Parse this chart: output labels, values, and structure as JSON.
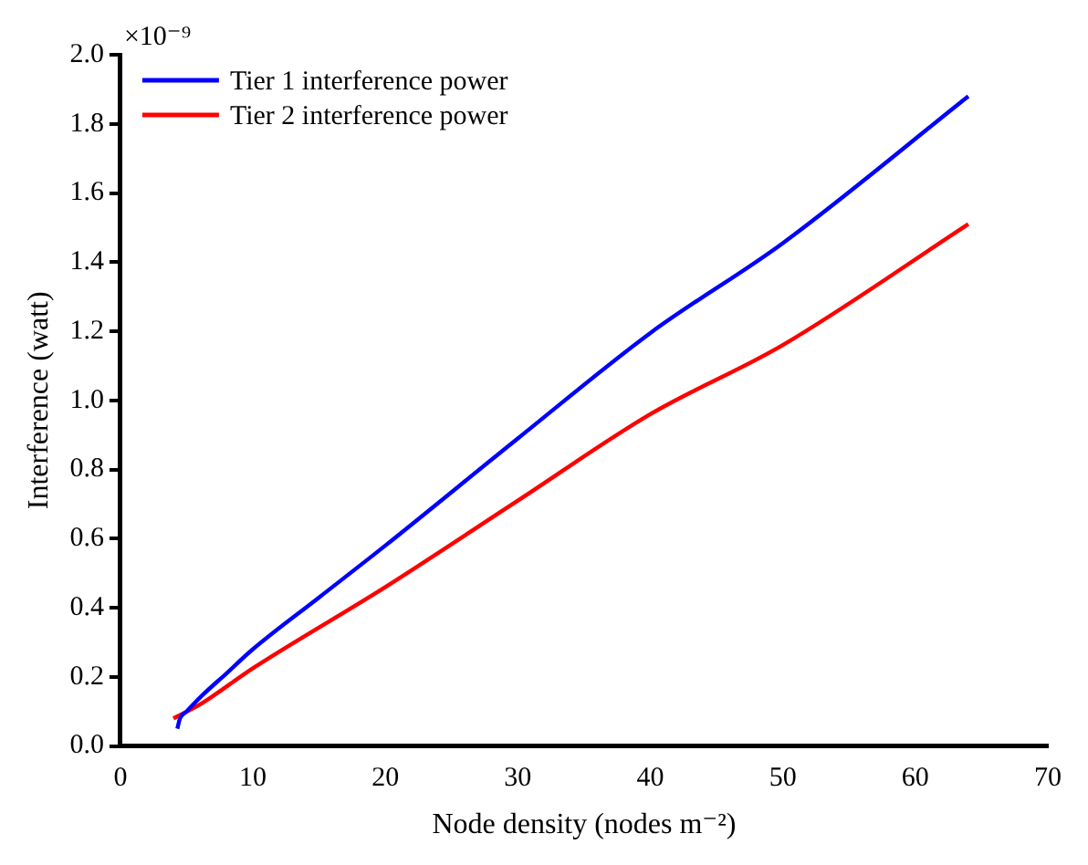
{
  "chart_data": {
    "type": "line",
    "xlabel": "Node density (nodes m⁻²)",
    "ylabel": "Interference (watt)",
    "annotations": [
      "×10⁻⁹"
    ],
    "xlim": [
      0,
      70
    ],
    "xticks": [
      0,
      10,
      20,
      30,
      40,
      50,
      60,
      70
    ],
    "ylim": [
      0,
      2
    ],
    "yticks": [
      {
        "value": 0,
        "label": "0.0"
      },
      {
        "value": 0.2,
        "label": "0.2"
      },
      {
        "value": 0.4,
        "label": "0.4"
      },
      {
        "value": 0.6,
        "label": "0.6"
      },
      {
        "value": 0.8,
        "label": "0.8"
      },
      {
        "value": 1,
        "label": "1.0"
      },
      {
        "value": 1.2,
        "label": "1.2"
      },
      {
        "value": 1.4,
        "label": "1.4"
      },
      {
        "value": 1.6,
        "label": "1.6"
      },
      {
        "value": 1.8,
        "label": "1.8"
      },
      {
        "value": 2,
        "label": "2.0"
      }
    ],
    "grid": false,
    "legend": "top left",
    "marker": "none",
    "line_style": "solid",
    "series": [
      {
        "name": "Tier 1 interference power",
        "color": "#0000ff",
        "x": [
          4.3,
          4.5,
          5,
          6,
          8,
          10,
          15,
          20,
          30,
          40,
          50,
          64
        ],
        "values": [
          0.05,
          0.08,
          0.1,
          0.14,
          0.21,
          0.28,
          0.43,
          0.58,
          0.89,
          1.195,
          1.455,
          1.88
        ]
      },
      {
        "name": "Tier 2 interference power",
        "color": "#ff0000",
        "x": [
          4,
          6,
          10,
          20,
          30,
          40,
          50,
          64
        ],
        "values": [
          0.08,
          0.12,
          0.225,
          0.46,
          0.71,
          0.96,
          1.16,
          1.51
        ]
      }
    ]
  }
}
